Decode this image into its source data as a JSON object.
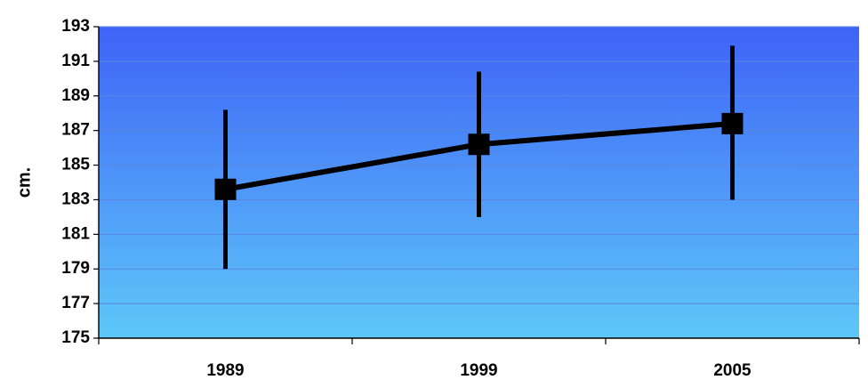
{
  "chart_data": {
    "type": "line",
    "title": "",
    "xlabel": "",
    "ylabel": "cm.",
    "ylim": [
      175,
      193
    ],
    "ytick_step": 2,
    "categories": [
      "1989",
      "1999",
      "2005"
    ],
    "series": [
      {
        "values": [
          183.6,
          186.2,
          187.4
        ],
        "error_low": [
          179.0,
          182.0,
          183.0
        ],
        "error_high": [
          188.2,
          190.4,
          191.9
        ]
      }
    ],
    "grid": true,
    "legend": "none",
    "colors": {
      "plot_top": "#3e63f7",
      "plot_bottom": "#5ec8f8",
      "line": "#000000",
      "grid": "#5a86e0"
    }
  }
}
